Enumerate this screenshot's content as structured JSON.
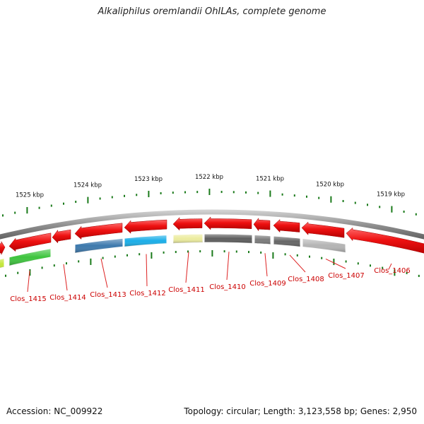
{
  "title": "Alkaliphilus oremlandii OhILAs, complete genome",
  "footer": {
    "accession_label": "Accession:",
    "accession_value": "NC_009922",
    "topology_label": "Topology:",
    "topology_value": "circular",
    "length_label": "Length:",
    "length_value": "3,123,558 bp",
    "genes_label": "Genes:",
    "genes_value": "2,950"
  },
  "colors": {
    "backbone": "#8c8c8c",
    "tick": "#1a7a1a",
    "feature_red": "#ee1111",
    "gene_label": "#cc0000",
    "leader_line": "#dd2222",
    "title_text": "#222222"
  },
  "scale_labels": [
    {
      "label": "1525 kbp"
    },
    {
      "label": "1524 kbp"
    },
    {
      "label": "1523 kbp"
    },
    {
      "label": "1522 kbp"
    },
    {
      "label": "1521 kbp"
    },
    {
      "label": "1520 kbp"
    },
    {
      "label": "1519 kbp"
    }
  ],
  "genes": [
    {
      "label": "Clos_1415",
      "color": "#3ec43e"
    },
    {
      "label": "Clos_1414",
      "color": ""
    },
    {
      "label": "Clos_1413",
      "color": "#3d79ad"
    },
    {
      "label": "Clos_1412",
      "color": "#1aaee8"
    },
    {
      "label": "Clos_1411",
      "color": "#ecec9e"
    },
    {
      "label": "Clos_1410",
      "color": "#5e5e5e"
    },
    {
      "label": "Clos_1409",
      "color": "#7c7c7c"
    },
    {
      "label": "Clos_1408",
      "color": "#666666"
    },
    {
      "label": "Clos_1407",
      "color": "#b4b4b4"
    },
    {
      "label": "Clos_1406",
      "color": ""
    }
  ]
}
